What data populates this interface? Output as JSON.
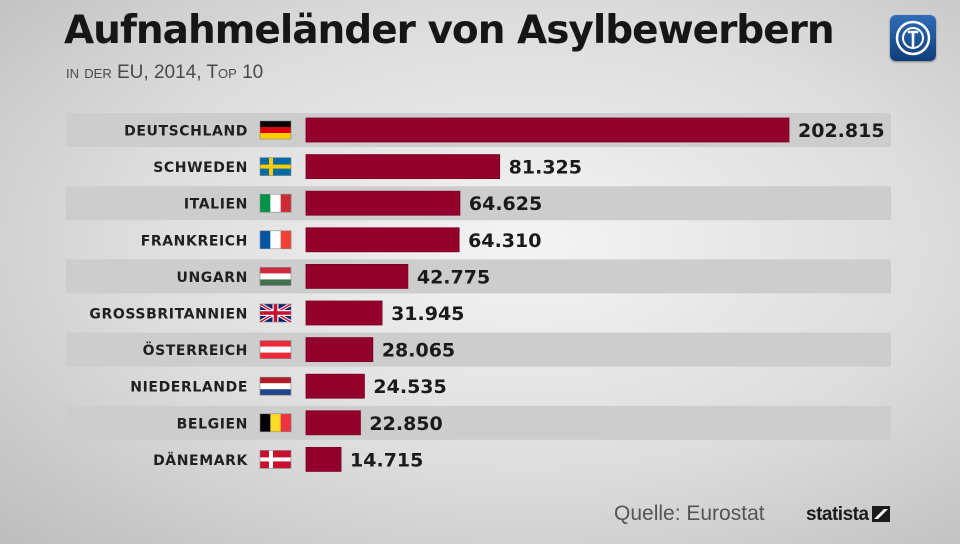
{
  "chart_data": {
    "type": "bar",
    "orientation": "horizontal",
    "title": "Aufnahmeländer von Asylbewerbern",
    "subtitle": "in der EU, 2014, Top 10",
    "categories": [
      "DEUTSCHLAND",
      "SCHWEDEN",
      "ITALIEN",
      "FRANKREICH",
      "UNGARN",
      "GROSSBRITANNIEN",
      "ÖSTERREICH",
      "NIEDERLANDE",
      "BELGIEN",
      "DÄNEMARK"
    ],
    "values": [
      202815,
      81325,
      64625,
      64310,
      42775,
      31945,
      28065,
      24535,
      22850,
      14715
    ],
    "value_labels": [
      "202.815",
      "81.325",
      "64.625",
      "64.310",
      "42.775",
      "31.945",
      "28.065",
      "24.535",
      "22.850",
      "14.715"
    ],
    "flags": [
      "flag-germany",
      "flag-sweden",
      "flag-italy",
      "flag-france",
      "flag-hungary",
      "flag-uk",
      "flag-austria",
      "flag-netherlands",
      "flag-belgium",
      "flag-denmark"
    ],
    "xlim": [
      0,
      202815
    ],
    "bar_color": "#94002c",
    "band_color": "#cdcdcd",
    "grid": false,
    "legend": "none"
  },
  "source": "Quelle: Eurostat",
  "brand": "statista",
  "logo_icon": "tagesschau-logo-icon"
}
